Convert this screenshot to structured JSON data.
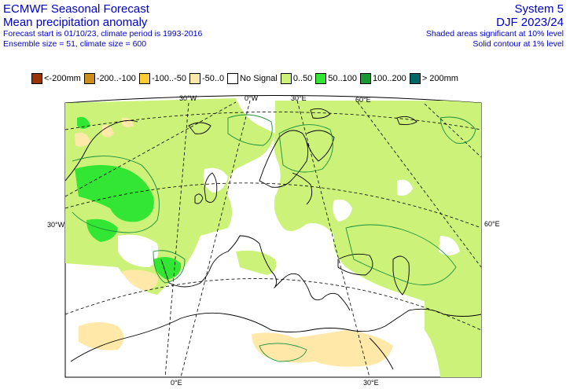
{
  "header": {
    "left": {
      "title": "ECMWF Seasonal Forecast",
      "subtitle": "Mean precipitation anomaly",
      "line3": "Forecast start is 01/10/23, climate period is 1993-2016",
      "line4": "Ensemble size = 51, climate size = 600"
    },
    "right": {
      "system": "System 5",
      "period": "DJF 2023/24",
      "sig1": "Shaded areas significant at 10% level",
      "sig2": "Solid contour at 1% level"
    }
  },
  "legend": [
    {
      "label": "<-200mm",
      "color": "#993300"
    },
    {
      "label": "-200..-100",
      "color": "#cc8e1b"
    },
    {
      "label": "-100..-50",
      "color": "#ffcc33"
    },
    {
      "label": "-50..0",
      "color": "#ffe8a8"
    },
    {
      "label": "No Signal",
      "color": "#ffffff"
    },
    {
      "label": "0..50",
      "color": "#ccf27a"
    },
    {
      "label": "50..100",
      "color": "#33e633"
    },
    {
      "label": "100..200",
      "color": "#1a9933"
    },
    {
      "label": "> 200mm",
      "color": "#006666"
    }
  ],
  "grid_labels": {
    "top_30w": "30°W",
    "top_0": "0°W",
    "top_30e": "30°E",
    "top_60e": "60°E",
    "left_30w": "30°W",
    "right_60e": "60°E",
    "bottom_0": "0°E",
    "bottom_30e": "30°E"
  }
}
